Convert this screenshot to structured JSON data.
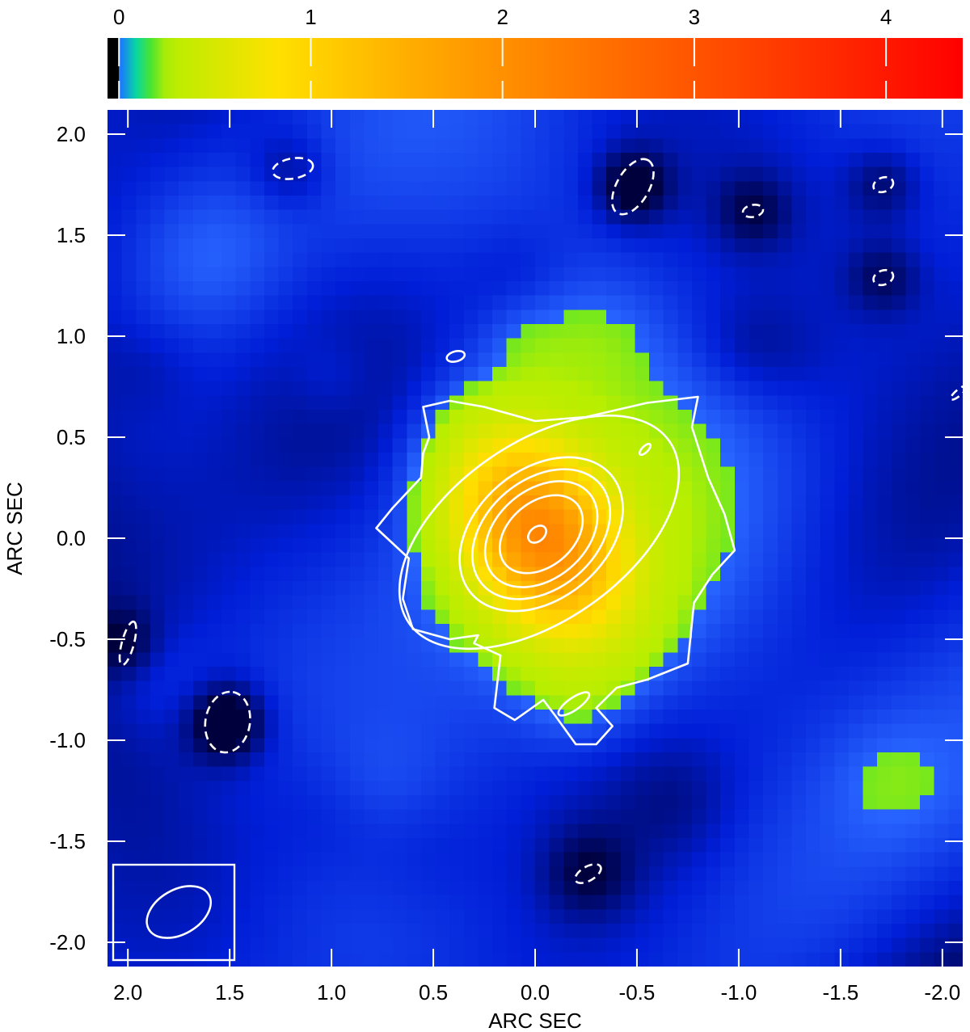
{
  "chart_data": {
    "type": "heatmap",
    "subtype": "radio/submm intensity map with contour overlay",
    "colormap": [
      "#000000",
      "#1e6cff",
      "#00d0d8",
      "#18e048",
      "#b8ee00",
      "#ffe000",
      "#ffae00",
      "#ff7800",
      "#ff3600",
      "#ff0000"
    ],
    "colorbar": {
      "position": "top",
      "range": [
        -0.06,
        4.4
      ],
      "ticks": [
        0,
        1,
        2,
        3,
        4
      ],
      "tick_labels": [
        "0",
        "1",
        "2",
        "3",
        "4"
      ]
    },
    "xlabel": "ARC SEC",
    "ylabel": "ARC SEC",
    "xlim": [
      2.1,
      -2.1
    ],
    "ylim": [
      -2.12,
      2.12
    ],
    "x_ticks": [
      2.0,
      1.5,
      1.0,
      0.5,
      0.0,
      -0.5,
      -1.0,
      -1.5,
      -2.0
    ],
    "x_tick_labels": [
      "2.0",
      "1.5",
      "1.0",
      "0.5",
      "0.0",
      "-0.5",
      "-1.0",
      "-1.5",
      "-2.0"
    ],
    "y_ticks": [
      2.0,
      1.5,
      1.0,
      0.5,
      0.0,
      -0.5,
      -1.0,
      -1.5,
      -2.0
    ],
    "y_tick_labels": [
      "2.0",
      "1.5",
      "1.0",
      "0.5",
      "0.0",
      "-0.5",
      "-1.0",
      "-1.5",
      "-2.0"
    ],
    "background_level": 0.1,
    "source": {
      "center": [
        -0.03,
        0.01
      ],
      "peak": 1.95,
      "sigma_major": 0.32,
      "sigma_minor": 0.22,
      "pa_deg": 60
    },
    "positive_contours": [
      {
        "level": 1,
        "points": [
          [
            0.52,
            0.5
          ],
          [
            0.55,
            0.65
          ],
          [
            0.42,
            0.68
          ],
          [
            0.25,
            0.65
          ],
          [
            0.0,
            0.58
          ],
          [
            -0.25,
            0.6
          ],
          [
            -0.55,
            0.67
          ],
          [
            -0.8,
            0.7
          ],
          [
            -0.77,
            0.55
          ],
          [
            -0.85,
            0.3
          ],
          [
            -0.93,
            0.12
          ],
          [
            -0.98,
            -0.06
          ],
          [
            -0.87,
            -0.18
          ],
          [
            -0.78,
            -0.32
          ],
          [
            -0.75,
            -0.62
          ],
          [
            -0.55,
            -0.7
          ],
          [
            -0.4,
            -0.74
          ],
          [
            -0.3,
            -0.84
          ],
          [
            -0.38,
            -0.93
          ],
          [
            -0.3,
            -1.02
          ],
          [
            -0.2,
            -1.02
          ],
          [
            -0.1,
            -0.88
          ],
          [
            -0.04,
            -0.8
          ],
          [
            0.1,
            -0.9
          ],
          [
            0.2,
            -0.84
          ],
          [
            0.17,
            -0.58
          ],
          [
            0.3,
            -0.52
          ],
          [
            0.28,
            -0.48
          ],
          [
            0.42,
            -0.5
          ],
          [
            0.6,
            -0.45
          ],
          [
            0.65,
            -0.3
          ],
          [
            0.62,
            -0.1
          ],
          [
            0.78,
            0.05
          ],
          [
            0.7,
            0.15
          ],
          [
            0.56,
            0.3
          ],
          [
            0.55,
            0.42
          ],
          [
            0.52,
            0.5
          ]
        ]
      },
      {
        "level": 2,
        "ellipse": {
          "center": [
            -0.02,
            0.03
          ],
          "semi_major": 0.78,
          "semi_minor": 0.44,
          "pa_deg": 35
        }
      },
      {
        "level": 3,
        "ellipse": {
          "center": [
            -0.03,
            0.02
          ],
          "semi_major": 0.45,
          "semi_minor": 0.32,
          "pa_deg": 40
        }
      },
      {
        "level": 4,
        "ellipse": {
          "center": [
            -0.03,
            0.02
          ],
          "semi_major": 0.38,
          "semi_minor": 0.27,
          "pa_deg": 40
        }
      },
      {
        "level": 5,
        "ellipse": {
          "center": [
            -0.03,
            0.02
          ],
          "semi_major": 0.31,
          "semi_minor": 0.22,
          "pa_deg": 40
        }
      },
      {
        "level": 6,
        "ellipse": {
          "center": [
            -0.03,
            0.02
          ],
          "semi_major": 0.23,
          "semi_minor": 0.16,
          "pa_deg": 40
        }
      },
      {
        "level": 7,
        "ellipse": {
          "center": [
            -0.01,
            0.02
          ],
          "semi_major": 0.05,
          "semi_minor": 0.035,
          "pa_deg": 40
        }
      }
    ],
    "small_positive_contours": [
      {
        "center": [
          0.39,
          0.9
        ],
        "semi_major": 0.045,
        "semi_minor": 0.025,
        "pa_deg": 15
      },
      {
        "center": [
          -0.54,
          0.44
        ],
        "semi_major": 0.035,
        "semi_minor": 0.015,
        "pa_deg": 45
      },
      {
        "center": [
          -0.19,
          -0.82
        ],
        "semi_major": 0.09,
        "semi_minor": 0.03,
        "pa_deg": 35
      }
    ],
    "negative_contours": [
      {
        "center": [
          1.19,
          1.83
        ],
        "semi_major": 0.1,
        "semi_minor": 0.05,
        "pa_deg": 10
      },
      {
        "center": [
          -0.48,
          1.74
        ],
        "semi_major": 0.15,
        "semi_minor": 0.08,
        "pa_deg": 60
      },
      {
        "center": [
          -1.07,
          1.62
        ],
        "semi_major": 0.05,
        "semi_minor": 0.03,
        "pa_deg": 10
      },
      {
        "center": [
          -1.71,
          1.75
        ],
        "semi_major": 0.05,
        "semi_minor": 0.035,
        "pa_deg": 20
      },
      {
        "center": [
          -1.71,
          1.29
        ],
        "semi_major": 0.05,
        "semi_minor": 0.035,
        "pa_deg": 20
      },
      {
        "center": [
          1.51,
          -0.91
        ],
        "semi_major": 0.15,
        "semi_minor": 0.11,
        "pa_deg": 80
      },
      {
        "center": [
          2.0,
          -0.52
        ],
        "semi_major": 0.11,
        "semi_minor": 0.03,
        "pa_deg": 75
      },
      {
        "center": [
          -0.26,
          -1.66
        ],
        "semi_major": 0.07,
        "semi_minor": 0.035,
        "pa_deg": 30
      },
      {
        "center": [
          -2.08,
          0.72
        ],
        "semi_major": 0.05,
        "semi_minor": 0.015,
        "pa_deg": 40
      }
    ],
    "negative_blobs": [
      {
        "center": [
          1.51,
          -0.91
        ],
        "sigma": 0.13,
        "depth": 0.15
      },
      {
        "center": [
          -0.48,
          1.74
        ],
        "sigma": 0.13,
        "depth": 0.12
      },
      {
        "center": [
          1.2,
          1.82
        ],
        "sigma": 0.14,
        "depth": 0.07
      },
      {
        "center": [
          -1.07,
          1.62
        ],
        "sigma": 0.13,
        "depth": 0.07
      },
      {
        "center": [
          -1.71,
          1.75
        ],
        "sigma": 0.13,
        "depth": 0.07
      },
      {
        "center": [
          -1.71,
          1.29
        ],
        "sigma": 0.13,
        "depth": 0.07
      },
      {
        "center": [
          2.02,
          -0.52
        ],
        "sigma": 0.12,
        "depth": 0.07
      },
      {
        "center": [
          -0.26,
          -1.66
        ],
        "sigma": 0.15,
        "depth": 0.07
      },
      {
        "center": [
          1.0,
          -1.35
        ],
        "sigma": 0.25,
        "depth": 0.03
      },
      {
        "center": [
          0.55,
          -1.55
        ],
        "sigma": 0.25,
        "depth": 0.03
      },
      {
        "center": [
          -0.7,
          -1.3
        ],
        "sigma": 0.2,
        "depth": 0.03
      },
      {
        "center": [
          -1.2,
          0.9
        ],
        "sigma": 0.2,
        "depth": 0.03
      },
      {
        "center": [
          -0.98,
          0.95
        ],
        "sigma": 0.18,
        "depth": 0.035
      },
      {
        "center": [
          1.9,
          0.85
        ],
        "sigma": 0.18,
        "depth": 0.03
      },
      {
        "center": [
          0.1,
          1.3
        ],
        "sigma": 0.18,
        "depth": 0.03
      }
    ],
    "bright_patches": [
      {
        "center": [
          1.6,
          1.4
        ],
        "sigma": 0.25,
        "amp": 0.06
      },
      {
        "center": [
          -0.3,
          1.0
        ],
        "sigma": 0.2,
        "amp": 0.05
      },
      {
        "center": [
          0.05,
          0.97
        ],
        "sigma": 0.16,
        "amp": 0.05
      },
      {
        "center": [
          -1.75,
          -1.2
        ],
        "sigma": 0.2,
        "amp": 0.04
      },
      {
        "center": [
          1.85,
          -0.7
        ],
        "sigma": 0.2,
        "amp": 0.04
      },
      {
        "center": [
          1.0,
          0.8
        ],
        "sigma": 0.15,
        "amp": 0.03
      },
      {
        "center": [
          0.75,
          -1.2
        ],
        "sigma": 0.2,
        "amp": 0.03
      }
    ],
    "beam": {
      "center": [
        1.75,
        -1.85
      ],
      "semi_major": 0.17,
      "semi_minor": 0.11,
      "pa_deg": 30
    },
    "grid": false
  }
}
